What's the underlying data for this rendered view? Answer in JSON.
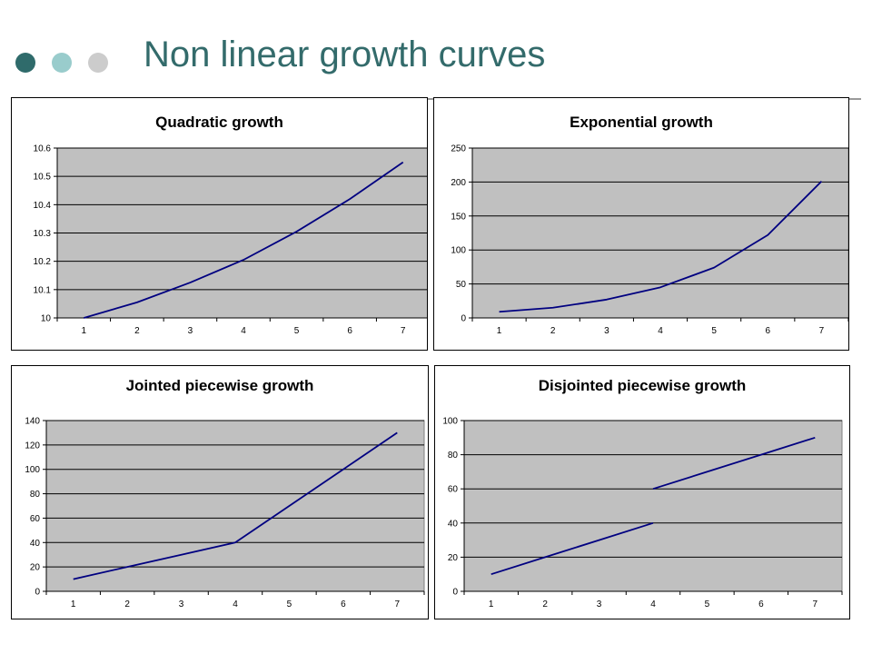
{
  "slide": {
    "title": "Non linear growth curves",
    "colors": {
      "title": "#336b6b",
      "dot_dark": "#2f6b6b",
      "dot_light": "#99cccc",
      "dot_grey": "#cccccc",
      "plot_area": "#c0c0c0",
      "series_line": "#000080"
    }
  },
  "chart_data": [
    {
      "type": "line",
      "title": "Quadratic growth",
      "x": [
        1,
        2,
        3,
        4,
        5,
        6,
        7
      ],
      "series": [
        {
          "values": [
            10.0,
            10.055,
            10.125,
            10.205,
            10.305,
            10.42,
            10.55
          ]
        }
      ],
      "ylim": [
        10,
        10.6
      ],
      "yticks": [
        "10",
        "10.1",
        "10.2",
        "10.3",
        "10.4",
        "10.5",
        "10.6"
      ],
      "xticks": [
        "1",
        "2",
        "3",
        "4",
        "5",
        "6",
        "7"
      ],
      "grid": "horizontal"
    },
    {
      "type": "line",
      "title": "Exponential growth",
      "x": [
        1,
        2,
        3,
        4,
        5,
        6,
        7
      ],
      "series": [
        {
          "values": [
            9,
            15,
            27,
            45,
            74,
            122,
            201
          ]
        }
      ],
      "ylim": [
        0,
        250
      ],
      "yticks": [
        "0",
        "50",
        "100",
        "150",
        "200",
        "250"
      ],
      "xticks": [
        "1",
        "2",
        "3",
        "4",
        "5",
        "6",
        "7"
      ],
      "grid": "horizontal"
    },
    {
      "type": "line",
      "title": "Jointed piecewise growth",
      "x": [
        1,
        2,
        3,
        4,
        5,
        6,
        7
      ],
      "series": [
        {
          "values": [
            10,
            20,
            30,
            40,
            70,
            100,
            130
          ]
        }
      ],
      "ylim": [
        0,
        140
      ],
      "yticks": [
        "0",
        "20",
        "40",
        "60",
        "80",
        "100",
        "120",
        "140"
      ],
      "xticks": [
        "1",
        "2",
        "3",
        "4",
        "5",
        "6",
        "7"
      ],
      "grid": "horizontal"
    },
    {
      "type": "line",
      "title": "Disjointed piecewise growth",
      "x": [
        1,
        2,
        3,
        4,
        5,
        6,
        7
      ],
      "series": [
        {
          "values": [
            10,
            20,
            30,
            40,
            null,
            null,
            null
          ]
        },
        {
          "values": [
            null,
            null,
            null,
            60,
            70,
            80,
            90
          ]
        }
      ],
      "ylim": [
        0,
        100
      ],
      "yticks": [
        "0",
        "20",
        "40",
        "60",
        "80",
        "100"
      ],
      "xticks": [
        "1",
        "2",
        "3",
        "4",
        "5",
        "6",
        "7"
      ],
      "grid": "horizontal"
    }
  ]
}
